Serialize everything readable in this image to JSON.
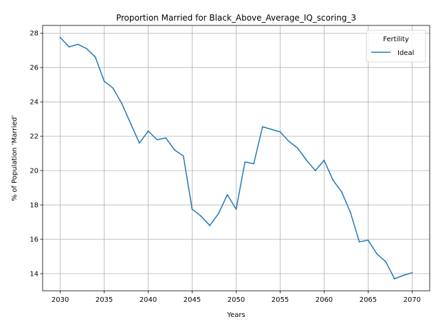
{
  "chart_data": {
    "type": "line",
    "title": "Proportion Married for Black_Above_Average_IQ_scoring_3",
    "xlabel": "Years",
    "ylabel": "% of Population 'Married'",
    "xlim": [
      2028.0,
      2072.0
    ],
    "ylim": [
      13.0,
      28.45
    ],
    "xticks": [
      2030,
      2035,
      2040,
      2045,
      2050,
      2055,
      2060,
      2065,
      2070
    ],
    "yticks": [
      14,
      16,
      18,
      20,
      22,
      24,
      26,
      28
    ],
    "grid": true,
    "legend": {
      "title": "Fertility",
      "placement": "top-right"
    },
    "x": [
      2030,
      2031,
      2032,
      2033,
      2034,
      2035,
      2036,
      2037,
      2038,
      2039,
      2040,
      2041,
      2042,
      2043,
      2044,
      2045,
      2046,
      2047,
      2048,
      2049,
      2050,
      2051,
      2052,
      2053,
      2054,
      2055,
      2056,
      2057,
      2058,
      2059,
      2060,
      2061,
      2062,
      2063,
      2064,
      2065,
      2066,
      2067,
      2068,
      2069,
      2070
    ],
    "series": [
      {
        "name": "Ideal",
        "color": "#1f77b4",
        "values": [
          27.75,
          27.2,
          27.35,
          27.1,
          26.6,
          25.2,
          24.8,
          23.9,
          22.75,
          21.6,
          22.3,
          21.8,
          21.9,
          21.2,
          20.85,
          17.75,
          17.35,
          16.8,
          17.5,
          18.6,
          17.75,
          20.5,
          20.4,
          22.55,
          22.4,
          22.25,
          21.7,
          21.3,
          20.6,
          20.0,
          20.6,
          19.45,
          18.75,
          17.55,
          15.85,
          15.95,
          15.15,
          14.7,
          13.7,
          13.9,
          14.05
        ]
      }
    ]
  }
}
